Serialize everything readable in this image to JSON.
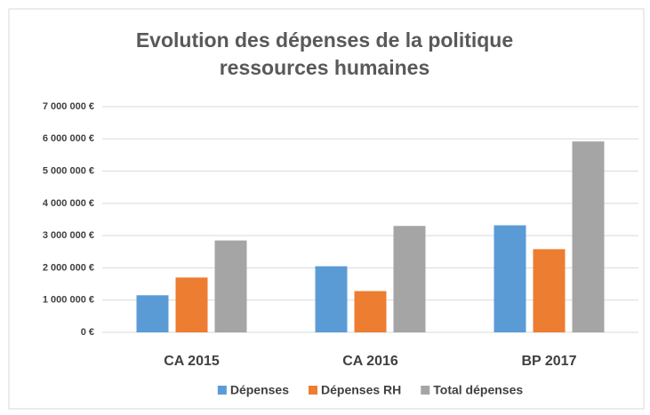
{
  "chart_data": {
    "type": "bar",
    "title": "Evolution des dépenses de la politique ressources humaines",
    "categories": [
      "CA 2015",
      "CA 2016",
      "BP 2017"
    ],
    "series": [
      {
        "name": "Dépenses",
        "color": "#5b9bd5",
        "values": [
          1150000,
          2050000,
          3320000
        ]
      },
      {
        "name": "Dépenses RH",
        "color": "#ed7d31",
        "values": [
          1700000,
          1280000,
          2580000
        ]
      },
      {
        "name": "Total dépenses",
        "color": "#a5a5a5",
        "values": [
          2850000,
          3300000,
          5920000
        ]
      }
    ],
    "ylim": [
      0,
      7000000
    ],
    "yticks": [
      {
        "value": 0,
        "label": "0 €"
      },
      {
        "value": 1000000,
        "label": "1 000 000 €"
      },
      {
        "value": 2000000,
        "label": "2 000 000 €"
      },
      {
        "value": 3000000,
        "label": "3 000 000 €"
      },
      {
        "value": 4000000,
        "label": "4 000 000 €"
      },
      {
        "value": 5000000,
        "label": "5 000 000 €"
      },
      {
        "value": 6000000,
        "label": "6 000 000 €"
      },
      {
        "value": 7000000,
        "label": "7 000 000 €"
      }
    ],
    "grid": true,
    "legend": "bottom"
  }
}
